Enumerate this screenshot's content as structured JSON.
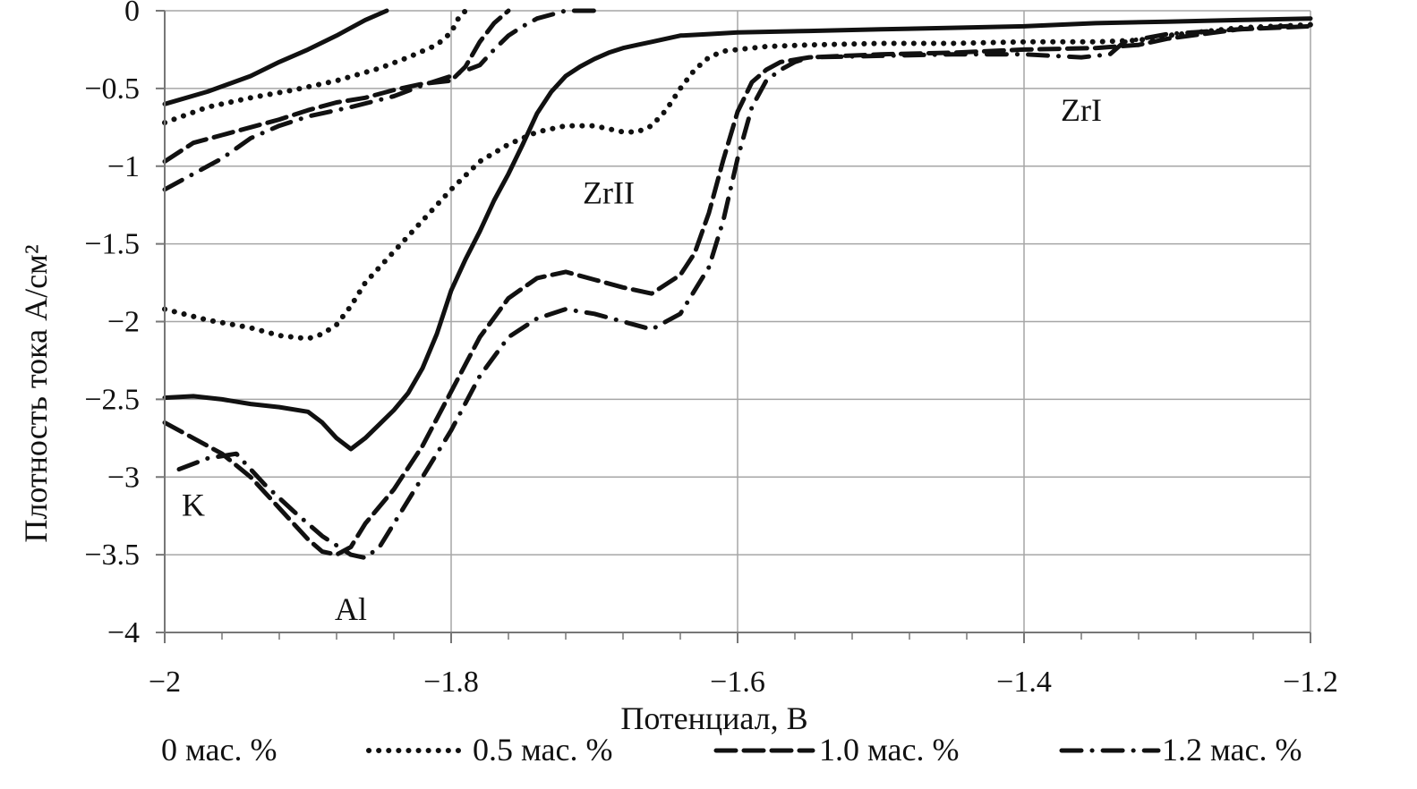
{
  "chart_data": {
    "type": "line",
    "xlabel": "Потенциал, В",
    "ylabel": "Плотность тока А/см²",
    "xlim": [
      -2.0,
      -1.2
    ],
    "ylim": [
      -4.0,
      0.0
    ],
    "x_ticks": [
      -2.0,
      -1.8,
      -1.6,
      -1.4,
      -1.2
    ],
    "x_tick_labels": [
      "−2",
      "−1.8",
      "−1.6",
      "−1.4",
      "−1.2"
    ],
    "y_ticks": [
      0,
      -0.5,
      -1,
      -1.5,
      -2,
      -2.5,
      -3,
      -3.5,
      -4
    ],
    "y_tick_labels": [
      "0",
      "−0.5",
      "−1",
      "−1.5",
      "−2",
      "−2.5",
      "−3",
      "−3.5",
      "−4"
    ],
    "grid": true,
    "legend_position": "bottom",
    "annotations": [
      {
        "text": "K",
        "x": -1.98,
        "y": -3.18
      },
      {
        "text": "Al",
        "x": -1.87,
        "y": -3.85
      },
      {
        "text": "ZrII",
        "x": -1.69,
        "y": -1.17
      },
      {
        "text": "ZrI",
        "x": -1.36,
        "y": -0.64
      }
    ],
    "series": [
      {
        "name": "0 мас. %",
        "style": "solid",
        "color": "#111111",
        "branches": [
          {
            "x": [
              -2.0,
              -1.97,
              -1.94,
              -1.92,
              -1.9,
              -1.88,
              -1.86,
              -1.845
            ],
            "y": [
              -0.6,
              -0.52,
              -0.42,
              -0.33,
              -0.25,
              -0.16,
              -0.06,
              0.0
            ]
          },
          {
            "x": [
              -2.0,
              -1.98,
              -1.96,
              -1.94,
              -1.92,
              -1.9,
              -1.89,
              -1.88,
              -1.87,
              -1.86,
              -1.85,
              -1.84,
              -1.83,
              -1.82,
              -1.81,
              -1.8,
              -1.79,
              -1.78,
              -1.77,
              -1.76,
              -1.75,
              -1.74,
              -1.73,
              -1.72,
              -1.71,
              -1.7,
              -1.69,
              -1.68,
              -1.67,
              -1.66,
              -1.65,
              -1.64,
              -1.62,
              -1.6,
              -1.55,
              -1.5,
              -1.45,
              -1.4,
              -1.35,
              -1.3,
              -1.25,
              -1.2
            ],
            "y": [
              -2.49,
              -2.48,
              -2.5,
              -2.53,
              -2.55,
              -2.58,
              -2.65,
              -2.75,
              -2.82,
              -2.75,
              -2.66,
              -2.57,
              -2.46,
              -2.3,
              -2.08,
              -1.8,
              -1.6,
              -1.42,
              -1.22,
              -1.05,
              -0.86,
              -0.66,
              -0.52,
              -0.42,
              -0.36,
              -0.31,
              -0.27,
              -0.24,
              -0.22,
              -0.2,
              -0.18,
              -0.16,
              -0.15,
              -0.14,
              -0.13,
              -0.12,
              -0.11,
              -0.1,
              -0.08,
              -0.07,
              -0.06,
              -0.05
            ]
          }
        ]
      },
      {
        "name": "0.5 мас. %",
        "style": "dotted",
        "color": "#111111",
        "branches": [
          {
            "x": [
              -2.0,
              -1.97,
              -1.94,
              -1.91,
              -1.88,
              -1.85,
              -1.83,
              -1.81,
              -1.8,
              -1.795,
              -1.79
            ],
            "y": [
              -0.72,
              -0.62,
              -0.56,
              -0.51,
              -0.45,
              -0.37,
              -0.3,
              -0.22,
              -0.14,
              -0.05,
              0.0
            ]
          },
          {
            "x": [
              -2.0,
              -1.97,
              -1.94,
              -1.92,
              -1.9,
              -1.89,
              -1.88,
              -1.87,
              -1.86,
              -1.84,
              -1.82,
              -1.8,
              -1.78,
              -1.76,
              -1.74,
              -1.72,
              -1.7,
              -1.69,
              -1.68,
              -1.67,
              -1.66,
              -1.65,
              -1.64,
              -1.63,
              -1.62,
              -1.61,
              -1.6,
              -1.58,
              -1.55,
              -1.5,
              -1.45,
              -1.4,
              -1.35,
              -1.32,
              -1.3,
              -1.27,
              -1.25,
              -1.2
            ],
            "y": [
              -1.92,
              -1.99,
              -2.04,
              -2.09,
              -2.11,
              -2.08,
              -2.02,
              -1.9,
              -1.75,
              -1.55,
              -1.35,
              -1.15,
              -0.97,
              -0.86,
              -0.78,
              -0.74,
              -0.74,
              -0.76,
              -0.78,
              -0.78,
              -0.74,
              -0.64,
              -0.5,
              -0.38,
              -0.3,
              -0.26,
              -0.25,
              -0.23,
              -0.22,
              -0.21,
              -0.21,
              -0.2,
              -0.2,
              -0.19,
              -0.16,
              -0.13,
              -0.11,
              -0.09
            ]
          }
        ]
      },
      {
        "name": "1.0 мас. %",
        "style": "dashed",
        "color": "#111111",
        "branches": [
          {
            "x": [
              -2.0,
              -1.98,
              -1.96,
              -1.94,
              -1.92,
              -1.9,
              -1.88,
              -1.86,
              -1.84,
              -1.82,
              -1.8,
              -1.79,
              -1.78,
              -1.77,
              -1.76
            ],
            "y": [
              -0.97,
              -0.85,
              -0.8,
              -0.75,
              -0.7,
              -0.64,
              -0.59,
              -0.56,
              -0.51,
              -0.47,
              -0.45,
              -0.36,
              -0.2,
              -0.08,
              0.0
            ]
          },
          {
            "x": [
              -2.0,
              -1.98,
              -1.96,
              -1.94,
              -1.92,
              -1.91,
              -1.9,
              -1.89,
              -1.88,
              -1.87,
              -1.86,
              -1.84,
              -1.82,
              -1.8,
              -1.78,
              -1.76,
              -1.74,
              -1.72,
              -1.7,
              -1.68,
              -1.66,
              -1.64,
              -1.63,
              -1.62,
              -1.61,
              -1.6,
              -1.59,
              -1.58,
              -1.57,
              -1.55,
              -1.5,
              -1.45,
              -1.4,
              -1.35,
              -1.32,
              -1.3,
              -1.25,
              -1.2
            ],
            "y": [
              -2.65,
              -2.75,
              -2.85,
              -3.0,
              -3.2,
              -3.3,
              -3.4,
              -3.48,
              -3.5,
              -3.45,
              -3.3,
              -3.08,
              -2.8,
              -2.45,
              -2.1,
              -1.85,
              -1.72,
              -1.68,
              -1.73,
              -1.78,
              -1.82,
              -1.7,
              -1.56,
              -1.3,
              -0.96,
              -0.65,
              -0.46,
              -0.38,
              -0.33,
              -0.3,
              -0.28,
              -0.27,
              -0.25,
              -0.24,
              -0.22,
              -0.18,
              -0.12,
              -0.1
            ]
          }
        ]
      },
      {
        "name": "1.2 мас. %",
        "style": "dashdot",
        "color": "#111111",
        "branches": [
          {
            "x": [
              -2.0,
              -1.98,
              -1.96,
              -1.94,
              -1.92,
              -1.9,
              -1.87,
              -1.84,
              -1.82,
              -1.8,
              -1.78,
              -1.77,
              -1.76,
              -1.75,
              -1.74,
              -1.72,
              -1.71,
              -1.7
            ],
            "y": [
              -1.15,
              -1.05,
              -0.95,
              -0.82,
              -0.74,
              -0.68,
              -0.62,
              -0.55,
              -0.48,
              -0.42,
              -0.35,
              -0.25,
              -0.16,
              -0.1,
              -0.05,
              0.0,
              0.0,
              0.0
            ]
          },
          {
            "x": [
              -1.99,
              -1.97,
              -1.95,
              -1.93,
              -1.91,
              -1.89,
              -1.87,
              -1.86,
              -1.85,
              -1.84,
              -1.82,
              -1.8,
              -1.78,
              -1.76,
              -1.74,
              -1.72,
              -1.7,
              -1.68,
              -1.66,
              -1.64,
              -1.62,
              -1.61,
              -1.6,
              -1.59,
              -1.58,
              -1.57,
              -1.56,
              -1.55,
              -1.5,
              -1.45,
              -1.4,
              -1.36,
              -1.34,
              -1.33,
              -1.3,
              -1.25,
              -1.2
            ],
            "y": [
              -2.95,
              -2.88,
              -2.85,
              -3.05,
              -3.22,
              -3.38,
              -3.5,
              -3.52,
              -3.45,
              -3.3,
              -3.0,
              -2.7,
              -2.35,
              -2.1,
              -1.98,
              -1.92,
              -1.95,
              -2.0,
              -2.05,
              -1.95,
              -1.65,
              -1.35,
              -0.95,
              -0.62,
              -0.45,
              -0.38,
              -0.33,
              -0.3,
              -0.29,
              -0.28,
              -0.28,
              -0.3,
              -0.28,
              -0.2,
              -0.15,
              -0.12,
              -0.09
            ]
          }
        ]
      }
    ]
  }
}
